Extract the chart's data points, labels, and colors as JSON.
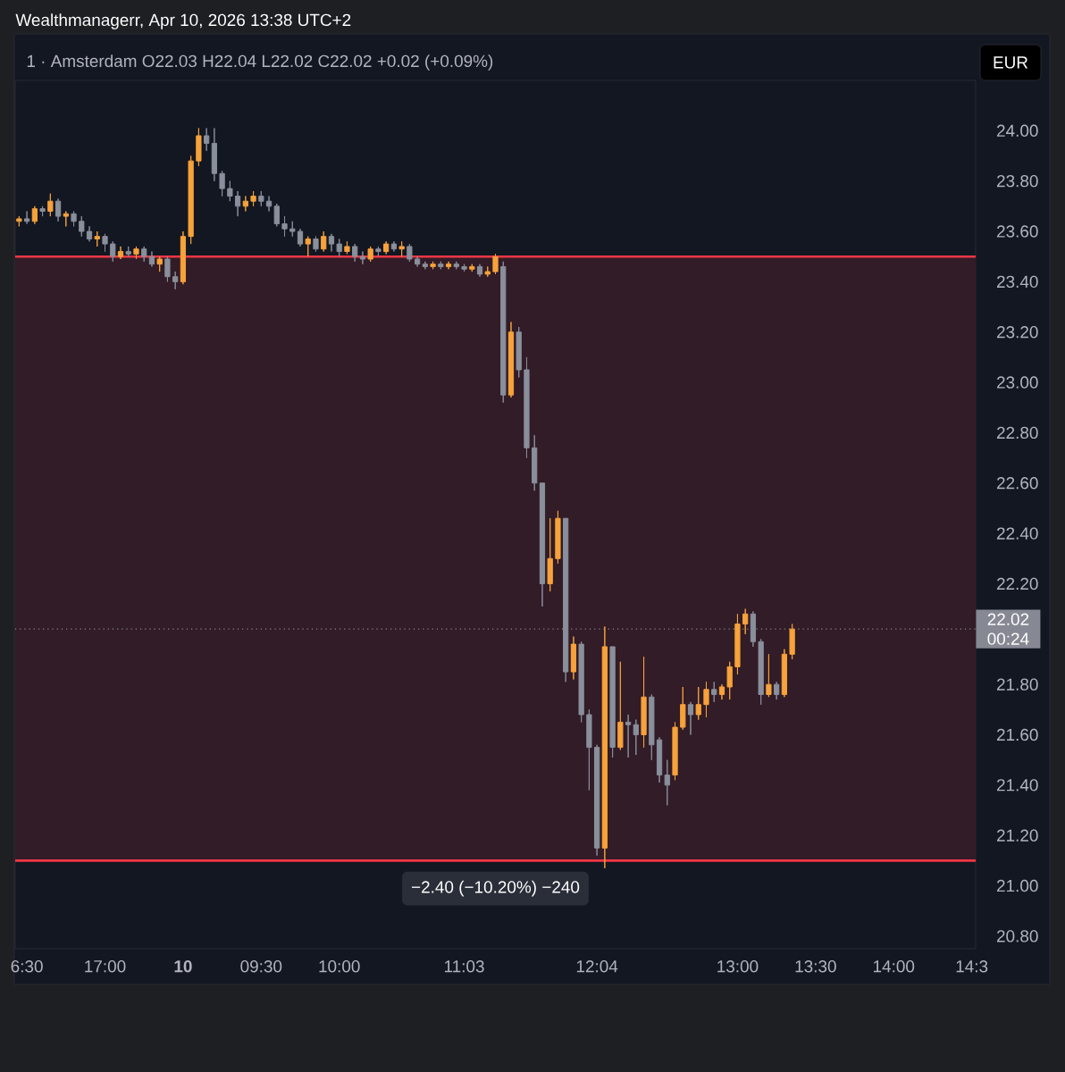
{
  "chart_data": {
    "type": "candlestick",
    "title": "1 · Amsterdam  O22.03  H22.04  L22.02  C22.02  +0.02 (+0.09%)",
    "ylabel": "EUR",
    "annotations": [
      "Wealthmanagerr, Apr 10, 2026 13:38 UTC+2",
      "−2.40 (−10.20%) −240"
    ],
    "categories": [
      null,
      "6:30",
      null,
      null,
      null,
      null,
      null,
      null,
      null,
      null,
      null,
      "17:00",
      null,
      null,
      null,
      null,
      null,
      null,
      null,
      null,
      null,
      "**10**",
      null,
      null,
      null,
      null,
      null,
      null,
      null,
      null,
      null,
      "09:30",
      null,
      null,
      null,
      null,
      null,
      null,
      null,
      null,
      null,
      "10:00",
      null,
      null,
      null,
      null,
      null,
      null,
      null,
      null,
      null,
      null,
      null,
      null,
      null,
      null,
      null,
      "11:03",
      null,
      null,
      null,
      null,
      null,
      null,
      null,
      null,
      null,
      null,
      null,
      null,
      null,
      null,
      null,
      null,
      "12:04",
      null,
      null,
      null,
      null,
      null,
      null,
      null,
      null,
      null,
      null,
      null,
      null,
      null,
      null,
      null,
      null,
      null,
      "13:00",
      null,
      null,
      null,
      null,
      null,
      null,
      null,
      null,
      null,
      "13:30",
      null,
      null,
      null,
      null,
      null,
      null,
      null,
      null,
      null,
      "14:00",
      null,
      null,
      null,
      null,
      null,
      null,
      null,
      null,
      null,
      "14:3"
    ],
    "ylim": [
      20.75,
      24.2
    ],
    "yticks": [
      {
        "value": 20.8,
        "label": "20.80"
      },
      {
        "value": 21.0,
        "label": "21.00"
      },
      {
        "value": 21.2,
        "label": "21.20"
      },
      {
        "value": 21.4,
        "label": "21.40"
      },
      {
        "value": 21.6,
        "label": "21.60"
      },
      {
        "value": 21.8,
        "label": "21.80"
      },
      {
        "value": 22.2,
        "label": "22.20"
      },
      {
        "value": 22.4,
        "label": "22.40"
      },
      {
        "value": 22.6,
        "label": "22.60"
      },
      {
        "value": 22.8,
        "label": "22.80"
      },
      {
        "value": 23.0,
        "label": "23.00"
      },
      {
        "value": 23.2,
        "label": "23.20"
      },
      {
        "value": 23.4,
        "label": "23.40"
      },
      {
        "value": 23.6,
        "label": "23.60"
      },
      {
        "value": 23.8,
        "label": "23.80"
      },
      {
        "value": 24.0,
        "label": "24.00"
      }
    ],
    "ref_lines": [
      {
        "axis": "y",
        "value": 22.02,
        "label": "22.02 00:24",
        "color": "#868993",
        "line_style": "dotted"
      },
      {
        "axis": "y",
        "value": 23.5,
        "color": "#f23645",
        "line_style": "solid"
      },
      {
        "axis": "y",
        "value": 21.1,
        "color": "#f23645",
        "line_style": "solid"
      }
    ],
    "bands": [
      {
        "axis": "y",
        "from": 21.1,
        "to": 23.5,
        "color": "#311c27"
      }
    ],
    "ohlc": [
      [
        23.64,
        23.66,
        23.62,
        23.65
      ],
      [
        23.65,
        23.68,
        23.63,
        23.64
      ],
      [
        23.64,
        23.7,
        23.63,
        23.69
      ],
      [
        23.69,
        23.7,
        23.66,
        23.68
      ],
      [
        23.68,
        23.75,
        23.66,
        23.72
      ],
      [
        23.72,
        23.73,
        23.64,
        23.66
      ],
      [
        23.66,
        23.68,
        23.62,
        23.67
      ],
      [
        23.67,
        23.68,
        23.62,
        23.64
      ],
      [
        23.64,
        23.66,
        23.58,
        23.6
      ],
      [
        23.6,
        23.62,
        23.56,
        23.57
      ],
      [
        23.57,
        23.6,
        23.54,
        23.58
      ],
      [
        23.58,
        23.59,
        23.52,
        23.55
      ],
      [
        23.55,
        23.56,
        23.48,
        23.5
      ],
      [
        23.5,
        23.54,
        23.49,
        23.52
      ],
      [
        23.52,
        23.54,
        23.5,
        23.51
      ],
      [
        23.51,
        23.54,
        23.49,
        23.53
      ],
      [
        23.53,
        23.54,
        23.48,
        23.5
      ],
      [
        23.5,
        23.52,
        23.46,
        23.47
      ],
      [
        23.47,
        23.5,
        23.44,
        23.49
      ],
      [
        23.49,
        23.5,
        23.4,
        23.42
      ],
      [
        23.42,
        23.44,
        23.37,
        23.4
      ],
      [
        23.4,
        23.6,
        23.39,
        23.58
      ],
      [
        23.58,
        23.9,
        23.55,
        23.88
      ],
      [
        23.88,
        24.01,
        23.86,
        23.98
      ],
      [
        23.98,
        24.01,
        23.92,
        23.95
      ],
      [
        23.95,
        24.01,
        23.8,
        23.83
      ],
      [
        23.83,
        23.84,
        23.74,
        23.77
      ],
      [
        23.77,
        23.8,
        23.72,
        23.74
      ],
      [
        23.74,
        23.76,
        23.66,
        23.7
      ],
      [
        23.7,
        23.74,
        23.68,
        23.72
      ],
      [
        23.72,
        23.76,
        23.7,
        23.74
      ],
      [
        23.74,
        23.76,
        23.7,
        23.72
      ],
      [
        23.72,
        23.74,
        23.68,
        23.7
      ],
      [
        23.7,
        23.71,
        23.62,
        23.63
      ],
      [
        23.63,
        23.66,
        23.58,
        23.61
      ],
      [
        23.61,
        23.64,
        23.58,
        23.6
      ],
      [
        23.6,
        23.61,
        23.54,
        23.55
      ],
      [
        23.55,
        23.58,
        23.5,
        23.57
      ],
      [
        23.57,
        23.58,
        23.52,
        23.53
      ],
      [
        23.53,
        23.6,
        23.52,
        23.58
      ],
      [
        23.58,
        23.59,
        23.52,
        23.55
      ],
      [
        23.55,
        23.57,
        23.5,
        23.52
      ],
      [
        23.52,
        23.56,
        23.51,
        23.54
      ],
      [
        23.54,
        23.55,
        23.48,
        23.5
      ],
      [
        23.5,
        23.52,
        23.47,
        23.49
      ],
      [
        23.49,
        23.54,
        23.48,
        23.53
      ],
      [
        23.53,
        23.54,
        23.5,
        23.52
      ],
      [
        23.52,
        23.56,
        23.51,
        23.55
      ],
      [
        23.55,
        23.56,
        23.52,
        23.53
      ],
      [
        23.53,
        23.56,
        23.5,
        23.54
      ],
      [
        23.54,
        23.55,
        23.48,
        23.49
      ],
      [
        23.49,
        23.5,
        23.46,
        23.47
      ],
      [
        23.47,
        23.48,
        23.45,
        23.46
      ],
      [
        23.46,
        23.48,
        23.45,
        23.47
      ],
      [
        23.47,
        23.48,
        23.45,
        23.46
      ],
      [
        23.46,
        23.48,
        23.45,
        23.47
      ],
      [
        23.47,
        23.48,
        23.45,
        23.46
      ],
      [
        23.46,
        23.47,
        23.44,
        23.45
      ],
      [
        23.45,
        23.47,
        23.44,
        23.46
      ],
      [
        23.46,
        23.47,
        23.42,
        23.43
      ],
      [
        23.43,
        23.46,
        23.42,
        23.44
      ],
      [
        23.44,
        23.51,
        23.43,
        23.5
      ],
      [
        23.46,
        23.48,
        22.92,
        22.95
      ],
      [
        22.95,
        23.24,
        22.94,
        23.2
      ],
      [
        23.2,
        23.22,
        23.02,
        23.05
      ],
      [
        23.05,
        23.1,
        22.7,
        22.74
      ],
      [
        22.74,
        22.79,
        22.57,
        22.6
      ],
      [
        22.6,
        22.6,
        22.11,
        22.2
      ],
      [
        22.2,
        22.46,
        22.17,
        22.3
      ],
      [
        22.3,
        22.49,
        22.28,
        22.46
      ],
      [
        22.46,
        22.46,
        21.81,
        21.85
      ],
      [
        21.85,
        21.99,
        21.82,
        21.96
      ],
      [
        21.96,
        21.97,
        21.65,
        21.68
      ],
      [
        21.68,
        21.7,
        21.38,
        21.55
      ],
      [
        21.55,
        21.56,
        21.12,
        21.15
      ],
      [
        21.15,
        22.03,
        21.07,
        21.95
      ],
      [
        21.95,
        21.95,
        21.51,
        21.55
      ],
      [
        21.55,
        21.89,
        21.54,
        21.65
      ],
      [
        21.65,
        21.68,
        21.51,
        21.64
      ],
      [
        21.64,
        21.66,
        21.52,
        21.6
      ],
      [
        21.6,
        21.91,
        21.55,
        21.75
      ],
      [
        21.75,
        21.76,
        21.5,
        21.56
      ],
      [
        21.58,
        21.59,
        21.41,
        21.44
      ],
      [
        21.44,
        21.5,
        21.32,
        21.4
      ],
      [
        21.44,
        21.65,
        21.42,
        21.63
      ],
      [
        21.63,
        21.79,
        21.62,
        21.72
      ],
      [
        21.72,
        21.73,
        21.6,
        21.68
      ],
      [
        21.68,
        21.79,
        21.66,
        21.72
      ],
      [
        21.72,
        21.81,
        21.67,
        21.78
      ],
      [
        21.78,
        21.81,
        21.73,
        21.76
      ],
      [
        21.76,
        21.8,
        21.74,
        21.79
      ],
      [
        21.79,
        21.89,
        21.74,
        21.87
      ],
      [
        21.87,
        22.08,
        21.84,
        22.04
      ],
      [
        22.04,
        22.1,
        22.0,
        22.08
      ],
      [
        22.08,
        22.09,
        21.95,
        21.97
      ],
      [
        21.97,
        21.98,
        21.72,
        21.76
      ],
      [
        21.76,
        21.92,
        21.75,
        21.8
      ],
      [
        21.8,
        21.81,
        21.74,
        21.76
      ],
      [
        21.76,
        21.94,
        21.75,
        21.92
      ],
      [
        21.92,
        22.04,
        21.9,
        22.02
      ],
      null,
      null,
      null,
      null,
      null,
      null,
      null,
      null,
      null,
      null,
      null,
      null,
      null,
      null,
      null,
      null,
      null,
      null,
      null,
      null,
      null,
      null,
      null
    ],
    "colors": [
      "#f7a23b",
      "#8a8f9c",
      "#f7a23b",
      "#8a8f9c",
      "#f7a23b",
      "#8a8f9c",
      "#f7a23b",
      "#8a8f9c",
      "#8a8f9c",
      "#8a8f9c",
      "#f7a23b",
      "#8a8f9c",
      "#8a8f9c",
      "#f7a23b",
      "#8a8f9c",
      "#f7a23b",
      "#8a8f9c",
      "#8a8f9c",
      "#f7a23b",
      "#8a8f9c",
      "#8a8f9c",
      "#f7a23b",
      "#f7a23b",
      "#f7a23b",
      "#8a8f9c",
      "#8a8f9c",
      "#8a8f9c",
      "#8a8f9c",
      "#8a8f9c",
      "#f7a23b",
      "#f7a23b",
      "#8a8f9c",
      "#8a8f9c",
      "#8a8f9c",
      "#8a8f9c",
      "#8a8f9c",
      "#8a8f9c",
      "#f7a23b",
      "#8a8f9c",
      "#f7a23b",
      "#8a8f9c",
      "#8a8f9c",
      "#f7a23b",
      "#8a8f9c",
      "#8a8f9c",
      "#f7a23b",
      "#8a8f9c",
      "#f7a23b",
      "#8a8f9c",
      "#f7a23b",
      "#8a8f9c",
      "#8a8f9c",
      "#8a8f9c",
      "#f7a23b",
      "#8a8f9c",
      "#f7a23b",
      "#8a8f9c",
      "#8a8f9c",
      "#f7a23b",
      "#8a8f9c",
      "#f7a23b",
      "#f7a23b",
      "#8a8f9c",
      "#f7a23b",
      "#8a8f9c",
      "#8a8f9c",
      "#8a8f9c",
      "#8a8f9c",
      "#f7a23b",
      "#f7a23b",
      "#8a8f9c",
      "#f7a23b",
      "#8a8f9c",
      "#8a8f9c",
      "#8a8f9c",
      "#f7a23b",
      "#8a8f9c",
      "#f7a23b",
      "#8a8f9c",
      "#8a8f9c",
      "#f7a23b",
      "#8a8f9c",
      "#8a8f9c",
      "#8a8f9c",
      "#f7a23b",
      "#f7a23b",
      "#8a8f9c",
      "#f7a23b",
      "#f7a23b",
      "#8a8f9c",
      "#f7a23b",
      "#f7a23b",
      "#f7a23b",
      "#f7a23b",
      "#8a8f9c",
      "#8a8f9c",
      "#f7a23b",
      "#8a8f9c",
      "#f7a23b",
      "#f7a23b",
      null,
      null,
      null,
      null,
      null,
      null,
      null,
      null,
      null,
      null,
      null,
      null,
      null,
      null,
      null,
      null,
      null,
      null,
      null,
      null,
      null,
      null,
      null
    ]
  }
}
